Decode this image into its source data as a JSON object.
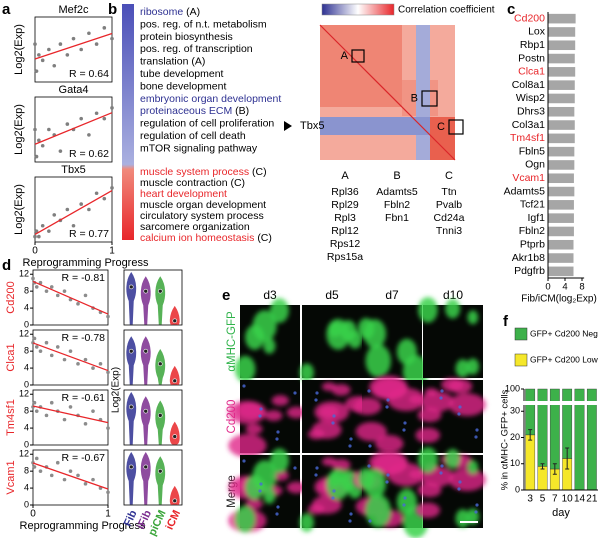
{
  "panel_labels": [
    "a",
    "b",
    "c",
    "d",
    "e",
    "f"
  ],
  "chart_data": [
    {
      "type": "scatter",
      "title": "Mef2c",
      "ylabel": "Log2(Exp)",
      "annotation": "R = 0.64",
      "x": [
        0,
        0.02,
        0.05,
        0.1,
        0.18,
        0.25,
        0.33,
        0.42,
        0.5,
        0.6,
        0.7,
        0.8,
        0.9,
        1.0
      ],
      "values": [
        7,
        2,
        5,
        4,
        6,
        3,
        7,
        5,
        8,
        6,
        9,
        7,
        10,
        8
      ],
      "color": "#7f7f7f",
      "fit_color": "#e8262a",
      "xlim": [
        0,
        1
      ],
      "ylim": [
        0,
        12
      ]
    },
    {
      "type": "scatter",
      "title": "Gata4",
      "ylabel": "Log2(Exp)",
      "annotation": "R = 0.62",
      "x": [
        0,
        0.02,
        0.05,
        0.1,
        0.18,
        0.25,
        0.33,
        0.42,
        0.5,
        0.6,
        0.7,
        0.8,
        0.9,
        1.0
      ],
      "values": [
        6,
        1,
        4,
        3,
        6,
        5,
        2,
        7,
        6,
        8,
        5,
        9,
        8,
        10
      ],
      "color": "#7f7f7f",
      "fit_color": "#e8262a",
      "xlim": [
        0,
        1
      ],
      "ylim": [
        0,
        12
      ]
    },
    {
      "type": "scatter",
      "title": "Tbx5",
      "ylabel": "Log2(Exp)",
      "annotation": "R = 0.77",
      "x": [
        0,
        0.02,
        0.05,
        0.1,
        0.18,
        0.25,
        0.33,
        0.42,
        0.5,
        0.6,
        0.7,
        0.8,
        0.9,
        1.0
      ],
      "values": [
        1,
        2,
        1,
        3,
        2,
        5,
        4,
        6,
        3,
        7,
        6,
        9,
        8,
        10
      ],
      "color": "#7f7f7f",
      "fit_color": "#e8262a",
      "xlim": [
        0,
        1
      ],
      "ylim": [
        0,
        12
      ],
      "xticks": [
        0,
        1
      ],
      "xlabel": "Reprogramming Progress"
    },
    {
      "type": "barh",
      "categories": [
        "Cd200",
        "Lox",
        "Rbp1",
        "Postn",
        "Clca1",
        "Col8a1",
        "Wisp2",
        "Dhrs3",
        "Col3a1",
        "Tm4sf1",
        "Fbln5",
        "Ogn",
        "Vcam1",
        "Adamts5",
        "Tcf21",
        "Igf1",
        "Fbln2",
        "Ptprb",
        "Akr1b8",
        "Pdgfrb"
      ],
      "label_colors": [
        "#e8262a",
        "#000000",
        "#000000",
        "#000000",
        "#e8262a",
        "#000000",
        "#000000",
        "#000000",
        "#000000",
        "#e8262a",
        "#000000",
        "#000000",
        "#e8262a",
        "#000000",
        "#000000",
        "#000000",
        "#000000",
        "#000000",
        "#000000",
        "#000000"
      ],
      "values": [
        6.5,
        6.4,
        6.4,
        6.3,
        6.4,
        6.3,
        6.3,
        6.2,
        6.3,
        6.3,
        6.2,
        6.2,
        6.1,
        6.2,
        6.1,
        6.1,
        6.1,
        6.0,
        6.0,
        6.0
      ],
      "color": "#a6a6a6",
      "xlim": [
        0,
        8.5
      ],
      "xticks": [
        0,
        4,
        8
      ],
      "xlabel": "Fib/iCM(log₂Exp)"
    },
    {
      "type": "scatter",
      "ylabel": "Cd200",
      "ylabel_color": "#e8262a",
      "annotation": "R = -0.81",
      "x": [
        0,
        0.02,
        0.05,
        0.1,
        0.18,
        0.25,
        0.33,
        0.42,
        0.5,
        0.6,
        0.7,
        0.8,
        0.9,
        1.0
      ],
      "values": [
        11,
        10,
        9,
        10,
        8,
        9,
        7,
        8,
        6,
        5,
        7,
        4,
        3,
        2
      ],
      "color": "#8c8c8c",
      "fit_color": "#e8262a",
      "xlim": [
        0,
        1
      ],
      "ylim": [
        0,
        13
      ],
      "yticks": [
        0,
        4,
        8,
        12
      ]
    },
    {
      "type": "scatter",
      "ylabel": "Clca1",
      "ylabel_color": "#e8262a",
      "annotation": "R = -0.78",
      "x": [
        0,
        0.02,
        0.05,
        0.1,
        0.18,
        0.25,
        0.33,
        0.42,
        0.5,
        0.6,
        0.7,
        0.8,
        0.9,
        1.0
      ],
      "values": [
        10,
        11,
        9,
        8,
        10,
        7,
        9,
        6,
        8,
        5,
        6,
        4,
        5,
        3
      ],
      "color": "#8c8c8c",
      "fit_color": "#e8262a",
      "xlim": [
        0,
        1
      ],
      "ylim": [
        0,
        13
      ],
      "yticks": [
        0,
        4,
        8,
        12
      ]
    },
    {
      "type": "scatter",
      "ylabel": "Tm4sf1",
      "ylabel_color": "#e8262a",
      "annotation": "R = -0.61",
      "x": [
        0,
        0.02,
        0.05,
        0.1,
        0.18,
        0.25,
        0.33,
        0.42,
        0.5,
        0.6,
        0.7,
        0.8,
        0.9,
        1.0
      ],
      "values": [
        9,
        10,
        8,
        9,
        7,
        10,
        8,
        6,
        9,
        7,
        5,
        8,
        6,
        4
      ],
      "color": "#8c8c8c",
      "fit_color": "#e8262a",
      "xlim": [
        0,
        1
      ],
      "ylim": [
        0,
        13
      ],
      "yticks": [
        0,
        4,
        8,
        12
      ]
    },
    {
      "type": "scatter",
      "ylabel": "Vcam1",
      "ylabel_color": "#e8262a",
      "annotation": "R = -0.67",
      "x": [
        0,
        0.02,
        0.05,
        0.1,
        0.18,
        0.25,
        0.33,
        0.42,
        0.5,
        0.6,
        0.7,
        0.8,
        0.9,
        1.0
      ],
      "values": [
        10,
        9,
        11,
        8,
        9,
        7,
        10,
        6,
        8,
        7,
        5,
        6,
        4,
        3
      ],
      "color": "#8c8c8c",
      "fit_color": "#e8262a",
      "xlim": [
        0,
        1
      ],
      "ylim": [
        0,
        13
      ],
      "yticks": [
        0,
        4,
        8,
        12
      ],
      "xticks": [
        0,
        1
      ],
      "xlabel": "Reprogramming Progress"
    },
    {
      "type": "violin",
      "medians": [
        9,
        8,
        8,
        1
      ],
      "colors": [
        "#2e3192",
        "#7b2c8f",
        "#3aa53a",
        "#e8262a"
      ],
      "ylim": [
        0,
        13
      ]
    },
    {
      "type": "violin",
      "medians": [
        8,
        8,
        5,
        1
      ],
      "colors": [
        "#2e3192",
        "#7b2c8f",
        "#3aa53a",
        "#e8262a"
      ],
      "ylim": [
        0,
        13
      ]
    },
    {
      "type": "violin",
      "medians": [
        9,
        8,
        7,
        2
      ],
      "colors": [
        "#2e3192",
        "#7b2c8f",
        "#3aa53a",
        "#e8262a"
      ],
      "ylim": [
        0,
        13
      ]
    },
    {
      "type": "violin",
      "medians": [
        9,
        9,
        8,
        1
      ],
      "colors": [
        "#2e3192",
        "#7b2c8f",
        "#3aa53a",
        "#e8262a"
      ],
      "ylim": [
        0,
        13
      ],
      "categories": [
        "Fib",
        "iFib",
        "piCM",
        "iCM"
      ]
    },
    {
      "type": "stacked_bar",
      "categories": [
        "3",
        "5",
        "7",
        "10",
        "14",
        "21"
      ],
      "xlabel": "day",
      "ylabel": "% in αMHC- GFP+ cells",
      "ylim": [
        0,
        100
      ],
      "yticks": [
        0,
        10,
        20,
        30,
        100
      ],
      "axis_break": [
        32,
        92
      ],
      "series": [
        {
          "name": "GFP+ Cd200 Low",
          "color": "#f5e72a",
          "values": [
            21,
            9,
            8,
            12,
            0,
            0
          ],
          "errors": [
            2,
            1,
            2,
            4,
            0,
            0
          ]
        },
        {
          "name": "GFP+ Cd200 Neg",
          "color": "#3db14a",
          "values": [
            79,
            91,
            92,
            88,
            100,
            100
          ]
        }
      ],
      "legend": "top"
    }
  ],
  "panel_b": {
    "go_terms": [
      {
        "term": "ribosome",
        "tag": "(A)",
        "color": "#2e3192"
      },
      {
        "term": "pos. reg. of n.t. metabolism",
        "color": "#000000"
      },
      {
        "term": "protein biosynthesis",
        "color": "#000000"
      },
      {
        "term": "pos. reg. of transcription",
        "color": "#000000"
      },
      {
        "term": "translation",
        "tag": "(A)",
        "color": "#000000"
      },
      {
        "term": "tube development",
        "color": "#000000"
      },
      {
        "term": "bone development",
        "color": "#000000"
      },
      {
        "term": "embryonic organ development",
        "color": "#2e3192"
      },
      {
        "term": "proteinaceous ECM",
        "tag": "(B)",
        "color": "#2e3192"
      },
      {
        "term": "regulation of cell proliferation",
        "color": "#000000"
      },
      {
        "term": "regulation of cell death",
        "color": "#000000"
      },
      {
        "term": "mTOR signaling pathway",
        "color": "#000000"
      },
      {
        "term": "muscle system process",
        "tag": "(C)",
        "color": "#e8262a"
      },
      {
        "term": "muscle contraction",
        "tag": "(C)",
        "color": "#000000"
      },
      {
        "term": "heart development",
        "color": "#e8262a"
      },
      {
        "term": "muscle organ development",
        "color": "#000000"
      },
      {
        "term": "circulatory system process",
        "color": "#000000"
      },
      {
        "term": "sarcomere organization",
        "color": "#000000"
      },
      {
        "term": "calcium ion homeostasis",
        "tag": "(C)",
        "color": "#e8262a"
      }
    ],
    "colorbar_label": "Correlation coefficient",
    "marker": "Tbx5",
    "gene_groups": [
      {
        "label": "A",
        "genes": [
          "Rpl36",
          "Rpl29",
          "Rpl3",
          "Rpl12",
          "Rps12",
          "Rps15a"
        ]
      },
      {
        "label": "B",
        "genes": [
          "Adamts5",
          "Fbln2",
          "Fbn1"
        ]
      },
      {
        "label": "C",
        "genes": [
          "Ttn",
          "Pvalb",
          "Cd24a",
          "Tnni3"
        ]
      }
    ]
  },
  "panel_e": {
    "days": [
      "d3",
      "d5",
      "d7",
      "d10"
    ],
    "rows": [
      {
        "label": "αMHC-GFP",
        "color": "#2fb34a"
      },
      {
        "label": "Cd200",
        "color": "#e0288a"
      },
      {
        "label": "Merge",
        "color": "#222222"
      }
    ]
  }
}
